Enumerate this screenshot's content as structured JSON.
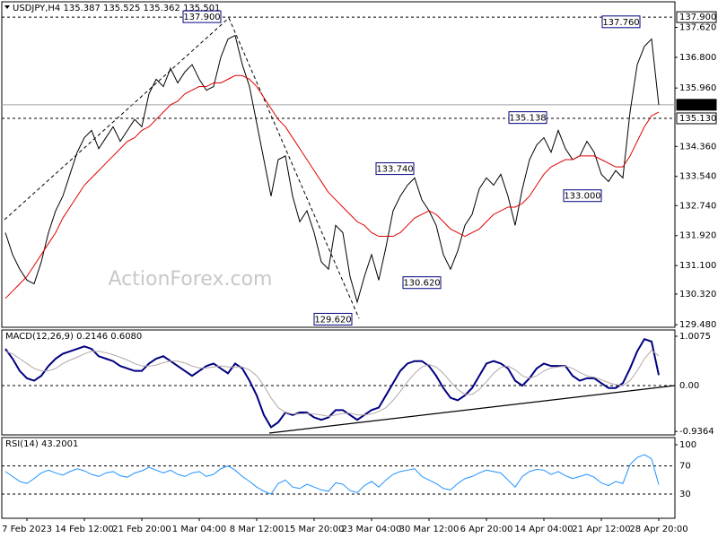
{
  "chart_data": [
    {
      "type": "line",
      "title": "USDJPY,H4  135.387 135.525 135.362 135.501",
      "watermark": "ActionForex.com",
      "ylim": [
        129.41,
        138.32
      ],
      "yticks": [
        {
          "value": 137.62,
          "label": "137.620"
        },
        {
          "value": 136.8,
          "label": "136.800"
        },
        {
          "value": 135.96,
          "label": "135.960"
        },
        {
          "value": 134.36,
          "label": "134.360"
        },
        {
          "value": 133.54,
          "label": "133.540"
        },
        {
          "value": 132.74,
          "label": "132.740"
        },
        {
          "value": 131.92,
          "label": "131.920"
        },
        {
          "value": 131.1,
          "label": "131.100"
        },
        {
          "value": 130.32,
          "label": "130.320"
        },
        {
          "value": 129.48,
          "label": "129.480"
        }
      ],
      "levels": [
        {
          "value": 137.9,
          "label": "137.900",
          "style": "dashed"
        },
        {
          "value": 135.13,
          "label": "135.130",
          "style": "dashed"
        },
        {
          "value": 135.501,
          "label": "135.501",
          "style": "current"
        }
      ],
      "annotations": [
        {
          "value": 137.9,
          "label": "137.900"
        },
        {
          "value": 137.76,
          "label": "137.760"
        },
        {
          "value": 135.138,
          "label": "135.138"
        },
        {
          "value": 133.74,
          "label": "133.740"
        },
        {
          "value": 133.0,
          "label": "133.000"
        },
        {
          "value": 130.62,
          "label": "130.620"
        },
        {
          "value": 129.62,
          "label": "129.620"
        }
      ],
      "series": [
        {
          "color": "#000000",
          "values": [
            132.0,
            131.4,
            131.0,
            130.7,
            130.6,
            131.2,
            132.0,
            132.6,
            133.0,
            133.6,
            134.2,
            134.6,
            134.8,
            134.3,
            134.6,
            134.9,
            134.5,
            134.8,
            135.1,
            134.9,
            135.8,
            136.2,
            136.0,
            136.5,
            136.1,
            136.4,
            136.6,
            136.2,
            135.9,
            136.0,
            136.8,
            137.3,
            137.4,
            136.6,
            136.0,
            135.0,
            134.0,
            133.0,
            134.0,
            134.1,
            133.0,
            132.3,
            132.6,
            132.0,
            131.2,
            131.0,
            132.2,
            132.0,
            130.8,
            130.1,
            130.8,
            131.4,
            130.7,
            131.6,
            132.6,
            133.0,
            133.3,
            133.5,
            132.9,
            132.6,
            132.2,
            131.4,
            131.0,
            131.5,
            132.2,
            132.5,
            133.2,
            133.5,
            133.3,
            133.6,
            133.0,
            132.2,
            133.2,
            134.0,
            134.4,
            134.6,
            134.2,
            134.8,
            134.3,
            134.0,
            134.1,
            134.5,
            134.2,
            133.6,
            133.4,
            133.7,
            133.5,
            135.3,
            136.6,
            137.1,
            137.3,
            135.5
          ]
        },
        {
          "color": "#e00000",
          "values": [
            130.2,
            130.4,
            130.6,
            130.8,
            131.1,
            131.4,
            131.7,
            132.0,
            132.4,
            132.7,
            133.0,
            133.3,
            133.5,
            133.7,
            133.9,
            134.1,
            134.3,
            134.5,
            134.6,
            134.8,
            134.9,
            135.1,
            135.3,
            135.5,
            135.6,
            135.8,
            135.9,
            136.0,
            136.0,
            136.1,
            136.1,
            136.2,
            136.3,
            136.3,
            136.2,
            136.0,
            135.7,
            135.4,
            135.1,
            134.9,
            134.6,
            134.3,
            134.0,
            133.7,
            133.4,
            133.1,
            132.9,
            132.7,
            132.5,
            132.3,
            132.2,
            132.0,
            131.9,
            131.9,
            131.9,
            132.0,
            132.2,
            132.4,
            132.5,
            132.6,
            132.5,
            132.3,
            132.1,
            132.0,
            131.9,
            132.0,
            132.1,
            132.3,
            132.5,
            132.6,
            132.7,
            132.7,
            132.8,
            133.0,
            133.3,
            133.6,
            133.8,
            133.9,
            134.0,
            134.0,
            134.1,
            134.1,
            134.1,
            134.0,
            133.9,
            133.8,
            133.8,
            134.1,
            134.5,
            134.9,
            135.2,
            135.3
          ]
        }
      ]
    },
    {
      "type": "line",
      "title": "MACD(12,26,9) 0.2146 0.6080",
      "ylim": [
        -1.007,
        1.136
      ],
      "yticks": [
        1.0075,
        -0.9364
      ],
      "levels": [
        {
          "value": 0,
          "label": "0.00",
          "style": "dashed"
        }
      ],
      "series": [
        {
          "color": "#000080",
          "values": [
            0.75,
            0.55,
            0.3,
            0.15,
            0.1,
            0.2,
            0.4,
            0.55,
            0.65,
            0.7,
            0.75,
            0.8,
            0.75,
            0.6,
            0.55,
            0.5,
            0.4,
            0.35,
            0.3,
            0.3,
            0.45,
            0.55,
            0.6,
            0.5,
            0.4,
            0.3,
            0.2,
            0.3,
            0.4,
            0.45,
            0.35,
            0.25,
            0.45,
            0.35,
            0.1,
            -0.2,
            -0.6,
            -0.85,
            -0.75,
            -0.55,
            -0.6,
            -0.55,
            -0.55,
            -0.65,
            -0.7,
            -0.65,
            -0.5,
            -0.5,
            -0.6,
            -0.7,
            -0.6,
            -0.5,
            -0.45,
            -0.2,
            0.05,
            0.3,
            0.45,
            0.5,
            0.5,
            0.4,
            0.2,
            -0.05,
            -0.25,
            -0.3,
            -0.2,
            -0.05,
            0.2,
            0.45,
            0.5,
            0.45,
            0.35,
            0.1,
            0.0,
            0.15,
            0.35,
            0.45,
            0.4,
            0.4,
            0.4,
            0.2,
            0.1,
            0.15,
            0.15,
            0.05,
            -0.05,
            -0.05,
            0.05,
            0.35,
            0.7,
            0.95,
            0.9,
            0.2146
          ]
        },
        {
          "color": "#b4a8a8",
          "values": [
            0.7,
            0.65,
            0.55,
            0.45,
            0.35,
            0.3,
            0.3,
            0.35,
            0.45,
            0.52,
            0.58,
            0.65,
            0.7,
            0.7,
            0.67,
            0.63,
            0.58,
            0.52,
            0.45,
            0.4,
            0.4,
            0.42,
            0.47,
            0.5,
            0.5,
            0.46,
            0.4,
            0.36,
            0.36,
            0.38,
            0.4,
            0.38,
            0.38,
            0.38,
            0.32,
            0.2,
            0.0,
            -0.25,
            -0.45,
            -0.55,
            -0.58,
            -0.58,
            -0.57,
            -0.58,
            -0.6,
            -0.63,
            -0.6,
            -0.57,
            -0.56,
            -0.6,
            -0.6,
            -0.58,
            -0.53,
            -0.45,
            -0.3,
            -0.12,
            0.08,
            0.25,
            0.38,
            0.43,
            0.38,
            0.25,
            0.08,
            -0.08,
            -0.18,
            -0.18,
            -0.08,
            0.08,
            0.25,
            0.37,
            0.4,
            0.32,
            0.2,
            0.15,
            0.2,
            0.3,
            0.36,
            0.38,
            0.4,
            0.35,
            0.27,
            0.2,
            0.17,
            0.12,
            0.06,
            0.02,
            0.0,
            0.1,
            0.3,
            0.55,
            0.72,
            0.608
          ]
        }
      ]
    },
    {
      "type": "line",
      "title": "RSI(14) 43.2001",
      "ylim": [
        -4.3,
        110.2
      ],
      "yticks": [
        100
      ],
      "levels": [
        {
          "value": 70,
          "style": "dashed"
        },
        {
          "value": 30,
          "style": "dashed"
        }
      ],
      "categories": [
        null,
        null,
        null,
        "7 Feb 2023",
        null,
        null,
        null,
        null,
        null,
        null,
        null,
        "14 Feb 12:00",
        null,
        null,
        null,
        null,
        null,
        null,
        null,
        "21 Feb 20:00",
        null,
        null,
        null,
        null,
        null,
        null,
        null,
        "1 Mar 04:00",
        null,
        null,
        null,
        null,
        null,
        null,
        null,
        "8 Mar 12:00",
        null,
        null,
        null,
        null,
        null,
        null,
        null,
        "15 Mar 20:00",
        null,
        null,
        null,
        null,
        null,
        null,
        null,
        "23 Mar 04:00",
        null,
        null,
        null,
        null,
        null,
        null,
        null,
        "30 Mar 12:00",
        null,
        null,
        null,
        null,
        null,
        null,
        null,
        "6 Apr 20:00",
        null,
        null,
        null,
        null,
        null,
        null,
        null,
        "14 Apr 04:00",
        null,
        null,
        null,
        null,
        null,
        null,
        null,
        "21 Apr 12:00",
        null,
        null,
        null,
        null,
        null,
        null,
        null,
        "28 Apr 20:00"
      ],
      "series": [
        {
          "color": "#1e90ff",
          "values": [
            62,
            55,
            48,
            45,
            52,
            60,
            64,
            60,
            57,
            62,
            66,
            63,
            58,
            55,
            60,
            62,
            56,
            54,
            60,
            63,
            68,
            64,
            60,
            64,
            58,
            55,
            60,
            62,
            55,
            58,
            66,
            70,
            64,
            55,
            48,
            40,
            34,
            30,
            45,
            50,
            40,
            38,
            44,
            40,
            36,
            34,
            46,
            44,
            35,
            32,
            42,
            48,
            40,
            50,
            58,
            62,
            64,
            66,
            55,
            50,
            45,
            38,
            36,
            45,
            52,
            55,
            60,
            64,
            62,
            60,
            50,
            40,
            55,
            62,
            65,
            64,
            58,
            62,
            56,
            52,
            55,
            58,
            54,
            46,
            42,
            48,
            45,
            72,
            82,
            86,
            80,
            43.2001
          ]
        }
      ]
    }
  ]
}
